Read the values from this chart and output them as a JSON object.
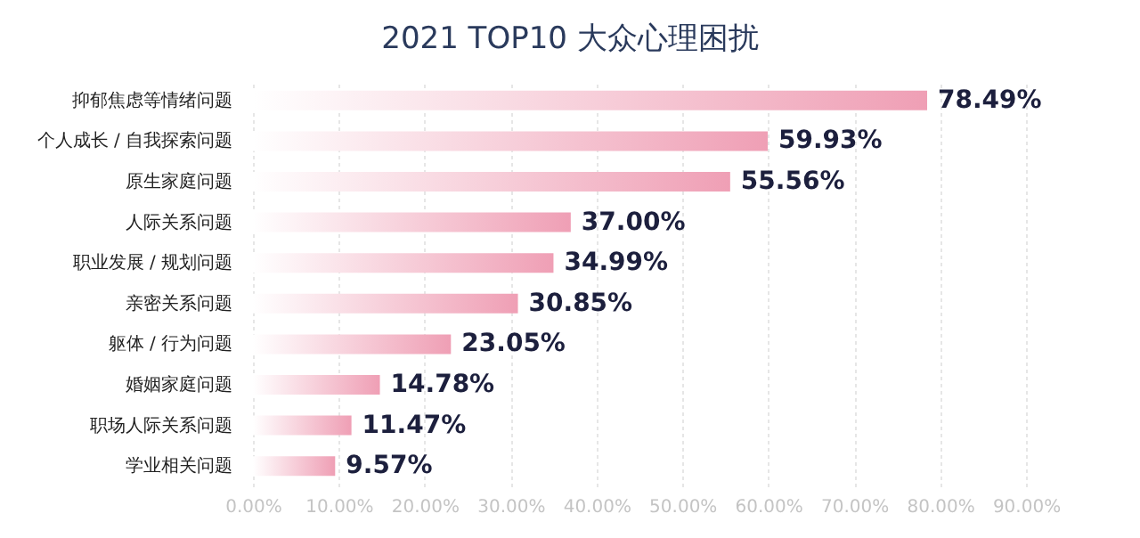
{
  "chart_data": {
    "type": "bar",
    "orientation": "horizontal",
    "title": "2021 TOP10 大众心理困扰",
    "categories": [
      "抑郁焦虑等情绪问题",
      "个人成长 / 自我探索问题",
      "原生家庭问题",
      "人际关系问题",
      "职业发展 / 规划问题",
      "亲密关系问题",
      "躯体 / 行为问题",
      "婚姻家庭问题",
      "职场人际关系问题",
      "学业相关问题"
    ],
    "values": [
      78.49,
      59.93,
      55.56,
      37.0,
      34.99,
      30.85,
      23.05,
      14.78,
      11.47,
      9.57
    ],
    "value_labels": [
      "78.49%",
      "59.93%",
      "55.56%",
      "37.00%",
      "34.99%",
      "30.85%",
      "23.05%",
      "14.78%",
      "11.47%",
      "9.57%"
    ],
    "color": "#ef9fb5",
    "xlim": [
      0,
      90
    ],
    "xticks": [
      {
        "value": 0,
        "label": "0.00%"
      },
      {
        "value": 10,
        "label": "10.00%"
      },
      {
        "value": 20,
        "label": "20.00%"
      },
      {
        "value": 30,
        "label": "30.00%"
      },
      {
        "value": 40,
        "label": "40.00%"
      },
      {
        "value": 50,
        "label": "50.00%"
      },
      {
        "value": 60,
        "label": "60.00%"
      },
      {
        "value": 70,
        "label": "70.00%"
      },
      {
        "value": 80,
        "label": "80.00%"
      },
      {
        "value": 90,
        "label": "90.00%"
      }
    ],
    "grid": "x"
  }
}
